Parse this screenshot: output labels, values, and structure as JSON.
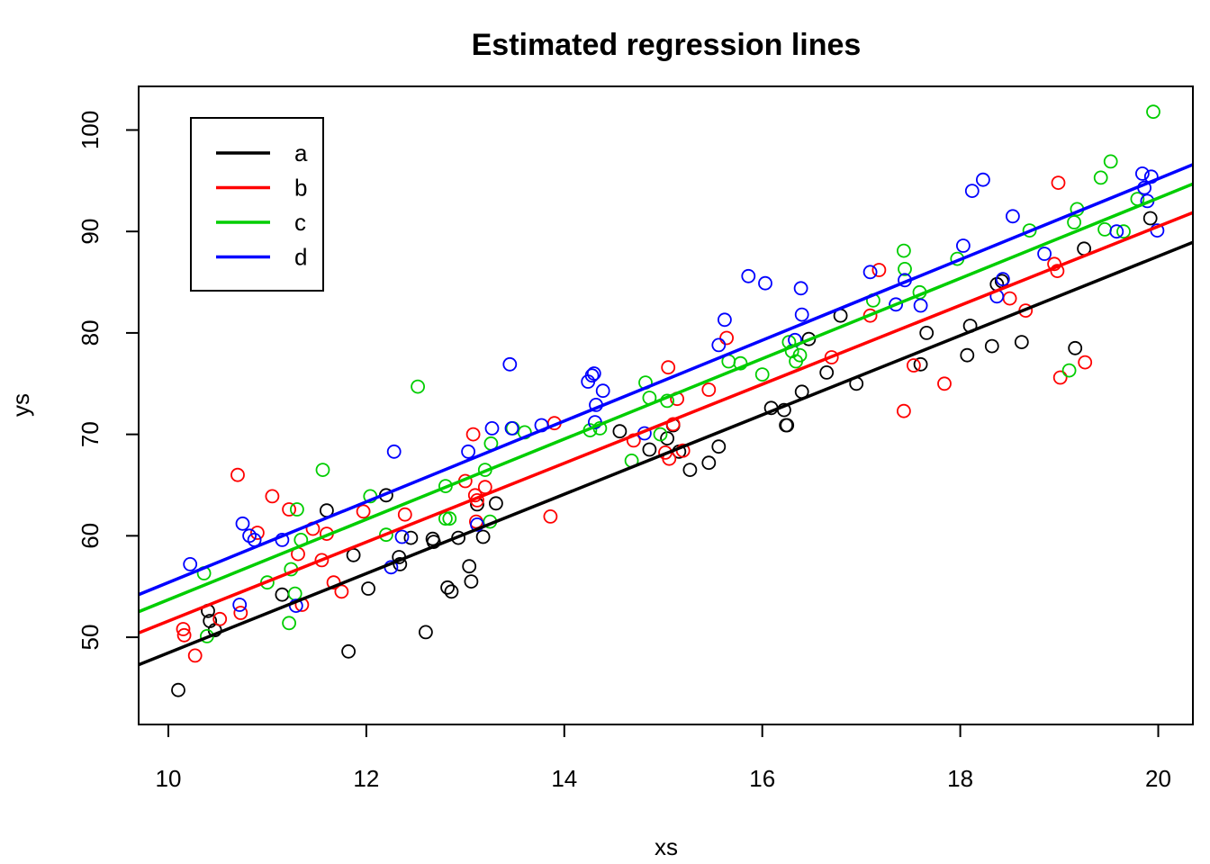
{
  "chart_data": {
    "type": "scatter",
    "title": "Estimated regression lines",
    "xlabel": "xs",
    "ylabel": "ys",
    "xlim": [
      9.7,
      20.35
    ],
    "ylim": [
      41.4,
      104.3
    ],
    "xticks": [
      10,
      12,
      14,
      16,
      18,
      20
    ],
    "yticks": [
      50,
      60,
      70,
      80,
      90,
      100
    ],
    "legend": {
      "position": "top-left"
    },
    "series": [
      {
        "name": "a",
        "color": "#000000",
        "line": {
          "intercept": 9.36,
          "slope": 3.91
        },
        "points": [
          [
            10.1,
            44.8
          ],
          [
            10.4,
            52.6
          ],
          [
            10.42,
            51.6
          ],
          [
            10.47,
            50.7
          ],
          [
            11.15,
            54.2
          ],
          [
            11.6,
            62.5
          ],
          [
            11.82,
            48.6
          ],
          [
            11.87,
            58.1
          ],
          [
            12.02,
            54.8
          ],
          [
            12.2,
            64.0
          ],
          [
            12.33,
            57.9
          ],
          [
            12.34,
            57.2
          ],
          [
            12.45,
            59.8
          ],
          [
            12.6,
            50.5
          ],
          [
            12.67,
            59.7
          ],
          [
            12.68,
            59.4
          ],
          [
            12.82,
            54.9
          ],
          [
            12.86,
            54.5
          ],
          [
            12.93,
            59.8
          ],
          [
            13.04,
            57.0
          ],
          [
            13.06,
            55.5
          ],
          [
            13.12,
            63.1
          ],
          [
            13.18,
            59.9
          ],
          [
            13.31,
            63.2
          ],
          [
            14.56,
            70.3
          ],
          [
            14.86,
            68.5
          ],
          [
            15.04,
            69.6
          ],
          [
            15.1,
            70.9
          ],
          [
            15.16,
            68.3
          ],
          [
            15.27,
            66.5
          ],
          [
            15.46,
            67.2
          ],
          [
            15.56,
            68.8
          ],
          [
            16.09,
            72.6
          ],
          [
            16.22,
            72.4
          ],
          [
            16.24,
            70.9
          ],
          [
            16.25,
            70.9
          ],
          [
            16.4,
            74.2
          ],
          [
            16.47,
            79.4
          ],
          [
            16.65,
            76.1
          ],
          [
            16.79,
            81.7
          ],
          [
            16.95,
            75.0
          ],
          [
            17.6,
            76.9
          ],
          [
            17.66,
            80.0
          ],
          [
            18.07,
            77.8
          ],
          [
            18.1,
            80.7
          ],
          [
            18.32,
            78.7
          ],
          [
            18.37,
            84.8
          ],
          [
            18.42,
            85.1
          ],
          [
            18.62,
            79.1
          ],
          [
            19.16,
            78.5
          ],
          [
            19.25,
            88.3
          ],
          [
            19.92,
            91.3
          ]
        ]
      },
      {
        "name": "b",
        "color": "#ff0000",
        "line": {
          "intercept": 12.7,
          "slope": 3.89
        },
        "points": [
          [
            10.15,
            50.8
          ],
          [
            10.16,
            50.2
          ],
          [
            10.27,
            48.2
          ],
          [
            10.52,
            51.8
          ],
          [
            10.7,
            66.0
          ],
          [
            10.73,
            52.4
          ],
          [
            10.9,
            60.3
          ],
          [
            11.05,
            63.9
          ],
          [
            11.22,
            62.6
          ],
          [
            11.31,
            58.2
          ],
          [
            11.35,
            53.2
          ],
          [
            11.46,
            60.7
          ],
          [
            11.55,
            57.6
          ],
          [
            11.6,
            60.2
          ],
          [
            11.67,
            55.4
          ],
          [
            11.75,
            54.5
          ],
          [
            11.97,
            62.4
          ],
          [
            12.39,
            62.1
          ],
          [
            13.0,
            65.4
          ],
          [
            13.08,
            70.0
          ],
          [
            13.1,
            64.0
          ],
          [
            13.11,
            61.4
          ],
          [
            13.12,
            63.5
          ],
          [
            13.2,
            64.8
          ],
          [
            13.86,
            61.9
          ],
          [
            13.9,
            71.1
          ],
          [
            14.7,
            69.4
          ],
          [
            15.02,
            68.2
          ],
          [
            15.05,
            76.6
          ],
          [
            15.06,
            67.6
          ],
          [
            15.1,
            71.0
          ],
          [
            15.14,
            73.5
          ],
          [
            15.2,
            68.4
          ],
          [
            15.46,
            74.4
          ],
          [
            15.64,
            79.5
          ],
          [
            16.7,
            77.6
          ],
          [
            17.09,
            81.7
          ],
          [
            17.18,
            86.2
          ],
          [
            17.43,
            72.3
          ],
          [
            17.53,
            76.8
          ],
          [
            17.84,
            75.0
          ],
          [
            18.5,
            83.4
          ],
          [
            18.66,
            82.2
          ],
          [
            18.95,
            86.8
          ],
          [
            18.98,
            86.1
          ],
          [
            18.99,
            94.8
          ],
          [
            19.01,
            75.6
          ],
          [
            19.26,
            77.1
          ]
        ]
      },
      {
        "name": "c",
        "color": "#00cd00",
        "line": {
          "intercept": 14.1,
          "slope": 3.96
        },
        "points": [
          [
            10.36,
            56.3
          ],
          [
            10.39,
            50.1
          ],
          [
            11.0,
            55.4
          ],
          [
            11.22,
            51.4
          ],
          [
            11.24,
            56.7
          ],
          [
            11.28,
            54.3
          ],
          [
            11.3,
            62.6
          ],
          [
            11.34,
            59.6
          ],
          [
            11.56,
            66.5
          ],
          [
            12.04,
            63.9
          ],
          [
            12.2,
            60.1
          ],
          [
            12.52,
            74.7
          ],
          [
            12.8,
            64.9
          ],
          [
            12.8,
            61.7
          ],
          [
            12.84,
            61.7
          ],
          [
            13.2,
            66.5
          ],
          [
            13.25,
            61.4
          ],
          [
            13.26,
            69.1
          ],
          [
            13.48,
            70.6
          ],
          [
            13.6,
            70.2
          ],
          [
            14.26,
            70.4
          ],
          [
            14.36,
            70.6
          ],
          [
            14.68,
            67.4
          ],
          [
            14.82,
            75.1
          ],
          [
            14.86,
            73.6
          ],
          [
            14.97,
            70.0
          ],
          [
            15.04,
            73.3
          ],
          [
            15.66,
            77.2
          ],
          [
            15.78,
            77.0
          ],
          [
            16.0,
            75.9
          ],
          [
            16.27,
            79.1
          ],
          [
            16.3,
            78.2
          ],
          [
            16.34,
            77.2
          ],
          [
            16.38,
            77.8
          ],
          [
            17.12,
            83.2
          ],
          [
            17.43,
            88.1
          ],
          [
            17.44,
            86.3
          ],
          [
            17.59,
            84.0
          ],
          [
            17.97,
            87.3
          ],
          [
            18.7,
            90.1
          ],
          [
            19.1,
            76.3
          ],
          [
            19.15,
            90.9
          ],
          [
            19.18,
            92.2
          ],
          [
            19.42,
            95.3
          ],
          [
            19.46,
            90.2
          ],
          [
            19.52,
            96.9
          ],
          [
            19.65,
            90.0
          ],
          [
            19.79,
            93.2
          ],
          [
            19.95,
            101.8
          ]
        ]
      },
      {
        "name": "d",
        "color": "#0000ff",
        "line": {
          "intercept": 15.6,
          "slope": 3.98
        },
        "points": [
          [
            10.22,
            57.2
          ],
          [
            10.72,
            53.2
          ],
          [
            10.75,
            61.2
          ],
          [
            10.82,
            60.0
          ],
          [
            10.87,
            59.6
          ],
          [
            11.15,
            59.6
          ],
          [
            11.29,
            53.1
          ],
          [
            12.25,
            56.9
          ],
          [
            12.28,
            68.3
          ],
          [
            12.36,
            59.9
          ],
          [
            13.03,
            68.3
          ],
          [
            13.12,
            61.1
          ],
          [
            13.27,
            70.6
          ],
          [
            13.45,
            76.9
          ],
          [
            13.47,
            70.6
          ],
          [
            13.77,
            70.9
          ],
          [
            14.24,
            75.2
          ],
          [
            14.28,
            75.8
          ],
          [
            14.3,
            76.0
          ],
          [
            14.31,
            71.2
          ],
          [
            14.32,
            72.9
          ],
          [
            14.39,
            74.3
          ],
          [
            14.81,
            70.1
          ],
          [
            15.56,
            78.8
          ],
          [
            15.62,
            81.3
          ],
          [
            15.86,
            85.6
          ],
          [
            16.03,
            84.9
          ],
          [
            16.33,
            79.3
          ],
          [
            16.39,
            84.4
          ],
          [
            16.4,
            81.8
          ],
          [
            17.09,
            86.0
          ],
          [
            17.35,
            82.8
          ],
          [
            17.44,
            85.2
          ],
          [
            17.6,
            82.7
          ],
          [
            18.03,
            88.6
          ],
          [
            18.12,
            94.0
          ],
          [
            18.23,
            95.1
          ],
          [
            18.37,
            83.6
          ],
          [
            18.43,
            85.3
          ],
          [
            18.53,
            91.5
          ],
          [
            18.85,
            87.8
          ],
          [
            19.58,
            90.0
          ],
          [
            19.84,
            95.7
          ],
          [
            19.86,
            94.3
          ],
          [
            19.89,
            93.0
          ],
          [
            19.93,
            95.4
          ],
          [
            19.99,
            90.1
          ]
        ]
      }
    ]
  }
}
